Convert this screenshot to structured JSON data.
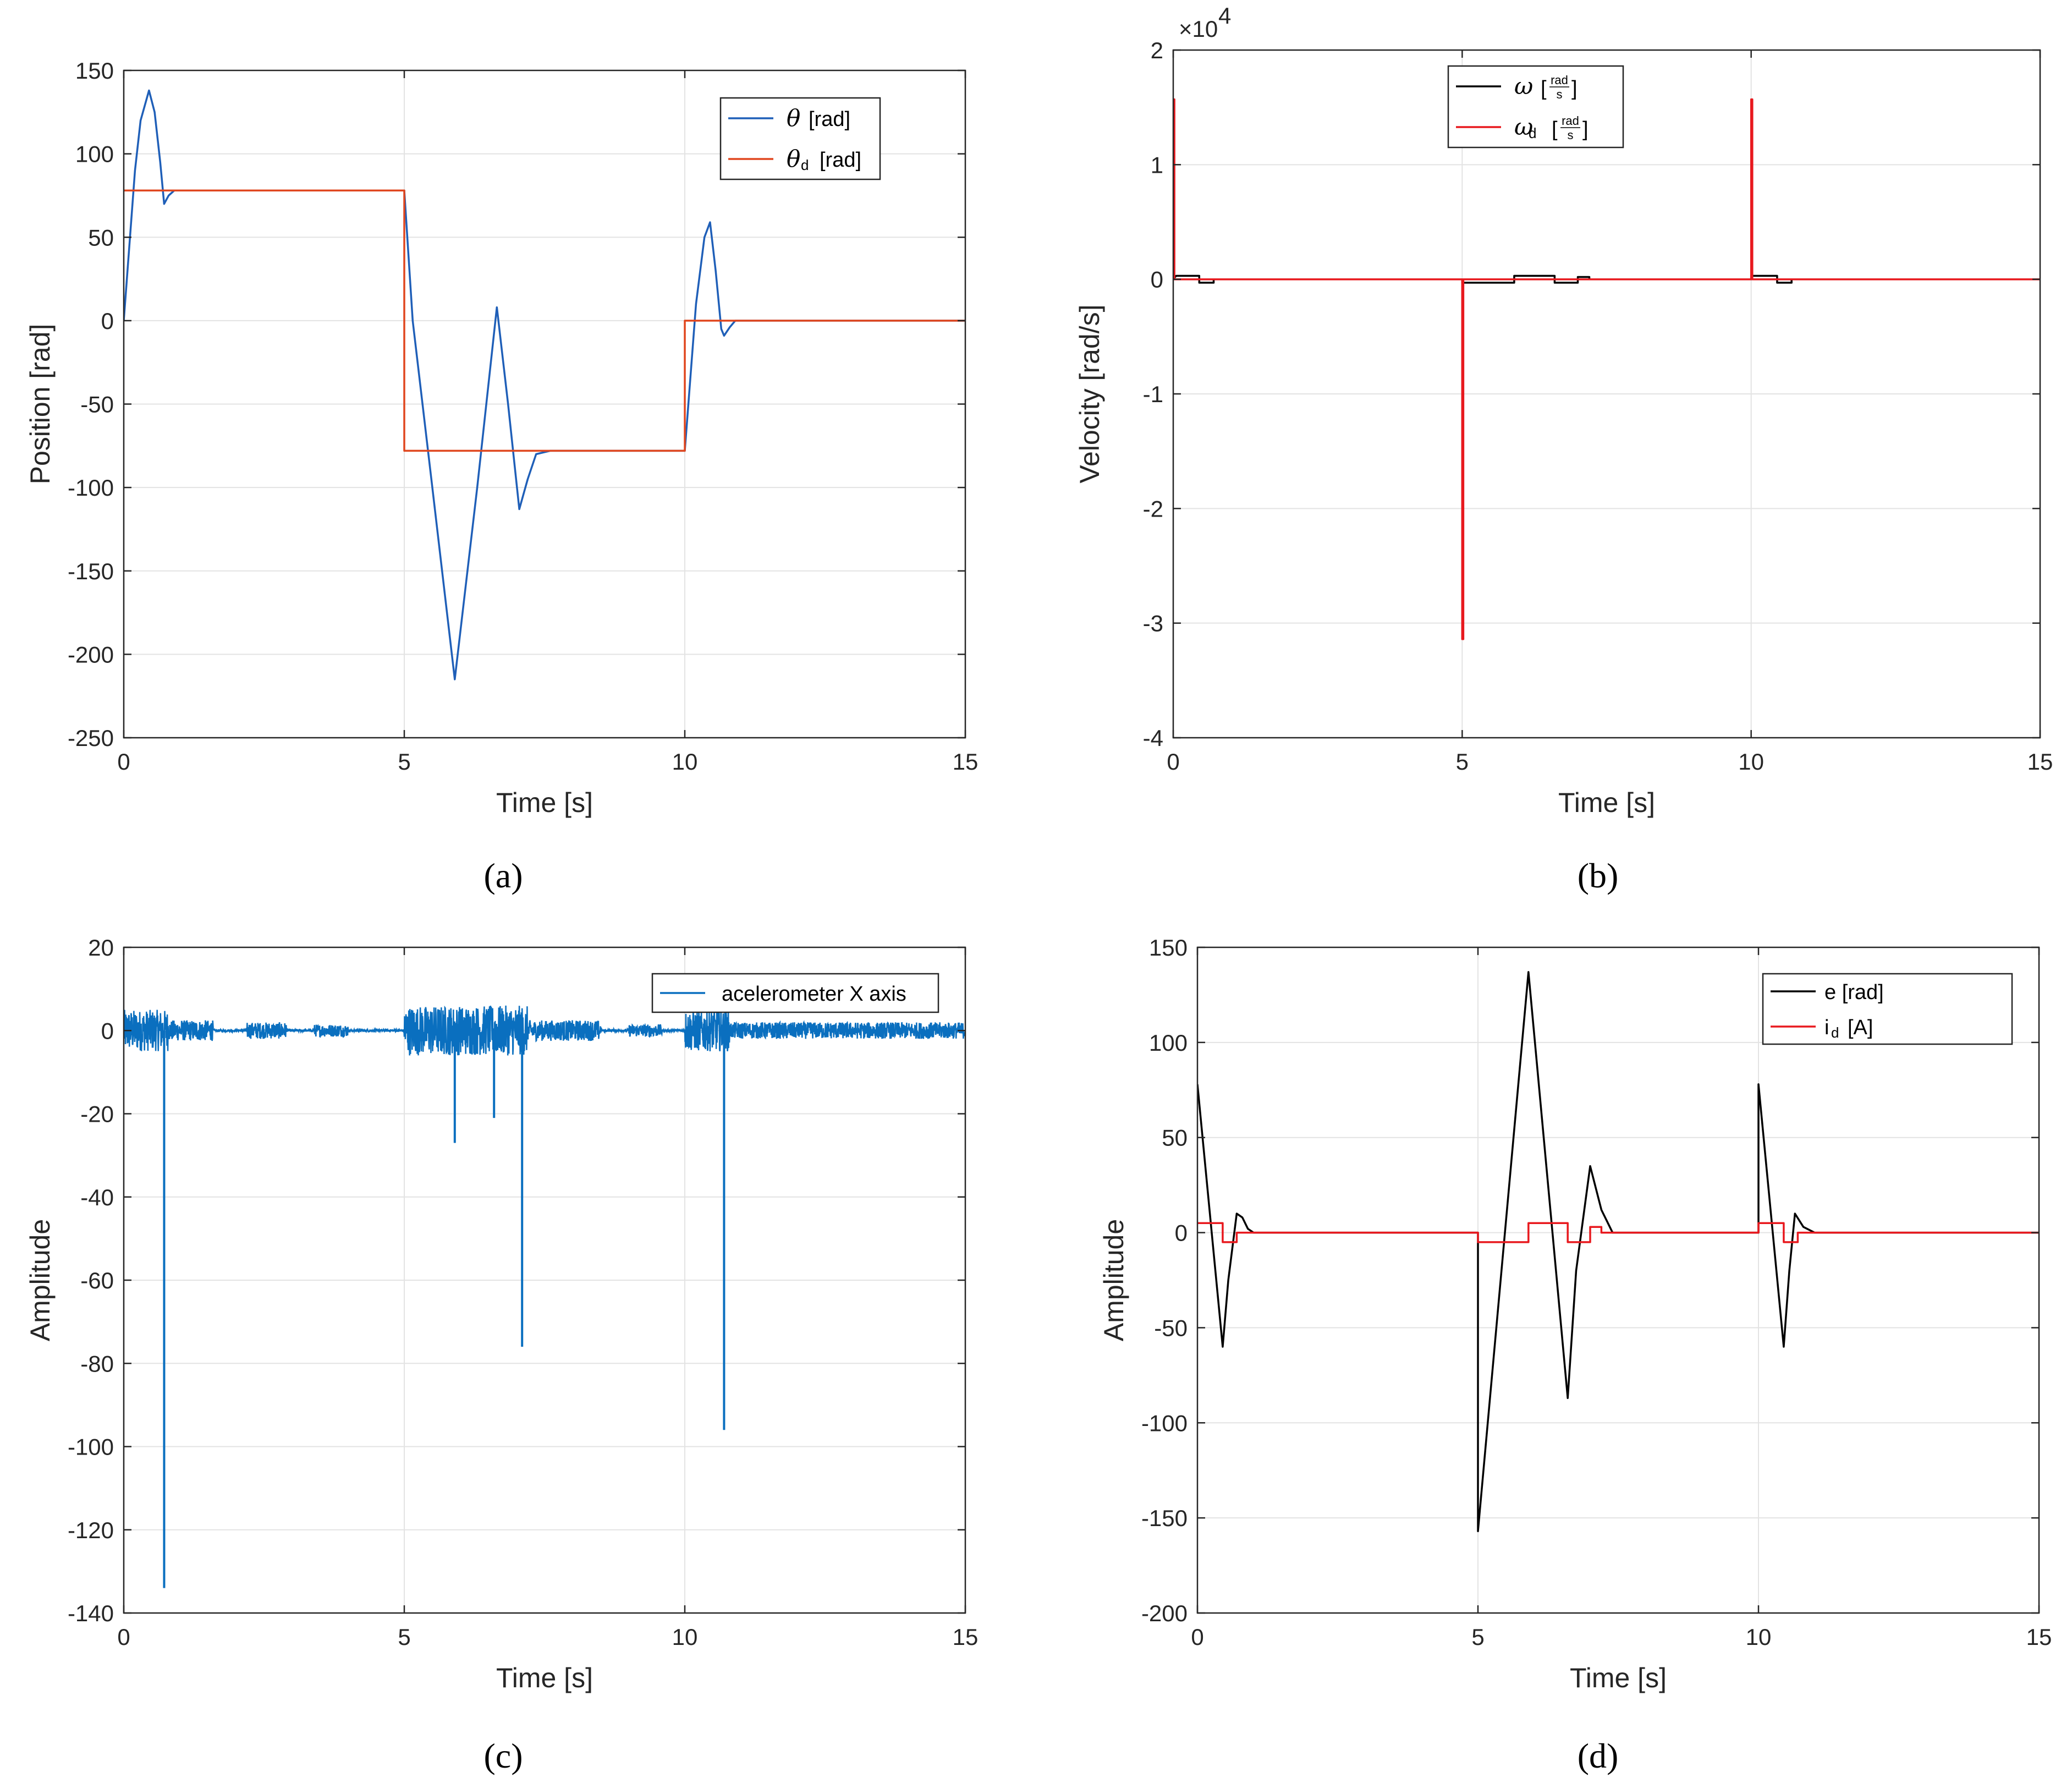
{
  "figure": {
    "captions": [
      "(a)",
      "(b)",
      "(c)",
      "(d)"
    ]
  },
  "chart_data": [
    {
      "id": "a",
      "type": "line",
      "xlabel": "Time [s]",
      "ylabel": "Position [rad]",
      "xlim": [
        0,
        15
      ],
      "ylim": [
        -250,
        150
      ],
      "xticks": [
        0,
        5,
        10,
        15
      ],
      "yticks": [
        150,
        100,
        50,
        0,
        -50,
        -100,
        -150,
        -200,
        -250
      ],
      "grid": true,
      "legend_position": "top-right",
      "legend": [
        {
          "symbol": "θ",
          "sub": "",
          "unit": "[rad]"
        },
        {
          "symbol": "θ",
          "sub": "d",
          "unit": "[rad]"
        }
      ],
      "series": [
        {
          "name": "theta",
          "color": "#1f5fb8",
          "mode": "linear",
          "x": [
            0,
            0.1,
            0.2,
            0.3,
            0.45,
            0.55,
            0.65,
            0.72,
            0.8,
            0.9,
            1.0,
            1.1,
            5.0,
            5.15,
            5.5,
            5.9,
            6.3,
            6.65,
            6.85,
            7.05,
            7.2,
            7.35,
            7.6,
            10.0,
            10.2,
            10.35,
            10.45,
            10.55,
            10.65,
            10.7,
            10.8,
            10.9,
            11.0,
            15.0
          ],
          "y": [
            0,
            45,
            90,
            120,
            138,
            125,
            95,
            70,
            75,
            78,
            78,
            78,
            78,
            0,
            -100,
            -215,
            -100,
            8,
            -50,
            -113,
            -95,
            -80,
            -78,
            -78,
            10,
            50,
            59,
            30,
            -5,
            -9,
            -4,
            0,
            0,
            0
          ]
        },
        {
          "name": "theta_d",
          "color": "#e0471f",
          "mode": "linear",
          "x": [
            0,
            5,
            5,
            10,
            10,
            15
          ],
          "y": [
            78,
            78,
            -78,
            -78,
            0,
            0
          ]
        }
      ]
    },
    {
      "id": "b",
      "type": "line",
      "xlabel": "Time [s]",
      "ylabel": "Velocity [rad/s]",
      "xlim": [
        0,
        15
      ],
      "ylim": [
        -4,
        2
      ],
      "xticks": [
        0,
        5,
        10,
        15
      ],
      "yticks": [
        2,
        1,
        0,
        -1,
        -2,
        -3,
        -4
      ],
      "exponent_label": "×10",
      "exponent_power": "4",
      "grid": true,
      "legend_position": "top-center",
      "legend": [
        {
          "symbol": "ω",
          "sub": "",
          "unit_num": "rad",
          "unit_den": "s"
        },
        {
          "symbol": "ω",
          "sub": "d",
          "unit_num": "rad",
          "unit_den": "s"
        }
      ],
      "series": [
        {
          "name": "omega",
          "color": "#000000",
          "mode": "linear",
          "x": [
            0,
            0.05,
            0.45,
            0.45,
            0.7,
            0.7,
            5.0,
            5.0,
            5.9,
            5.9,
            6.6,
            6.6,
            7.0,
            7.0,
            7.2,
            7.2,
            10.0,
            10.0,
            10.45,
            10.45,
            10.7,
            10.7,
            15.0
          ],
          "y": [
            0,
            0.03,
            0.03,
            -0.03,
            -0.03,
            0,
            0,
            -0.03,
            -0.03,
            0.03,
            0.03,
            -0.03,
            -0.03,
            0.02,
            0.02,
            0,
            0,
            0.03,
            0.03,
            -0.03,
            -0.03,
            0,
            0
          ]
        },
        {
          "name": "omega_d",
          "color": "#e8191e",
          "mode": "linear",
          "x": [
            0,
            0.02,
            0.02,
            5.0,
            5.0,
            5.02,
            5.02,
            10.0,
            10.0,
            10.02,
            10.02,
            15.0
          ],
          "y": [
            1.57,
            1.57,
            0,
            0,
            -3.14,
            -3.14,
            0,
            0,
            1.57,
            1.57,
            0,
            0
          ]
        }
      ]
    },
    {
      "id": "c",
      "type": "line",
      "xlabel": "Time [s]",
      "ylabel": "Amplitude",
      "xlim": [
        0,
        15
      ],
      "ylim": [
        -140,
        20
      ],
      "xticks": [
        0,
        5,
        10,
        15
      ],
      "yticks": [
        20,
        0,
        -20,
        -40,
        -60,
        -80,
        -100,
        -120,
        -140
      ],
      "grid": true,
      "legend_position": "top-right",
      "legend": [
        {
          "symbol": "",
          "sub": "",
          "unit": "acelerometer X axis"
        }
      ],
      "series": [
        {
          "name": "accel_x",
          "color": "#0a6fbf",
          "mode": "noise",
          "noise_bursts": [
            {
              "t0": 0.0,
              "t1": 0.8,
              "amp": 5
            },
            {
              "t0": 0.8,
              "t1": 1.6,
              "amp": 2.5
            },
            {
              "t0": 2.2,
              "t1": 2.9,
              "amp": 2
            },
            {
              "t0": 3.4,
              "t1": 4.0,
              "amp": 1.5
            },
            {
              "t0": 5.0,
              "t1": 7.2,
              "amp": 6
            },
            {
              "t0": 7.2,
              "t1": 8.5,
              "amp": 2.5
            },
            {
              "t0": 9.0,
              "t1": 9.6,
              "amp": 1.5
            },
            {
              "t0": 10.0,
              "t1": 10.8,
              "amp": 5
            },
            {
              "t0": 10.8,
              "t1": 15.0,
              "amp": 2
            }
          ],
          "spikes": [
            {
              "t": 0.72,
              "v": -134
            },
            {
              "t": 5.9,
              "v": -27
            },
            {
              "t": 6.6,
              "v": -21
            },
            {
              "t": 7.1,
              "v": -76
            },
            {
              "t": 10.7,
              "v": -96
            }
          ]
        }
      ]
    },
    {
      "id": "d",
      "type": "line",
      "xlabel": "Time [s]",
      "ylabel": "Amplitude",
      "xlim": [
        0,
        15
      ],
      "ylim": [
        -200,
        150
      ],
      "xticks": [
        0,
        5,
        10,
        15
      ],
      "yticks": [
        150,
        100,
        50,
        0,
        -50,
        -100,
        -150,
        -200
      ],
      "grid": true,
      "legend_position": "top-right",
      "legend": [
        {
          "symbol": "",
          "sub": "",
          "unit": "e [rad]"
        },
        {
          "symbol": "",
          "sub": "",
          "unit": "i_d [A]"
        }
      ],
      "legend_text": [
        "e [rad]",
        "i",
        "d",
        "[A]"
      ],
      "series": [
        {
          "name": "e",
          "color": "#000000",
          "mode": "linear",
          "x": [
            0,
            0.45,
            0.55,
            0.7,
            0.8,
            0.9,
            1.0,
            1.1,
            5.0,
            5.0,
            5.9,
            6.6,
            6.75,
            7.0,
            7.2,
            7.4,
            10.0,
            10.0,
            10.45,
            10.55,
            10.65,
            10.8,
            11.0,
            15.0
          ],
          "y": [
            78,
            -60,
            -25,
            10,
            8,
            2,
            0,
            0,
            0,
            -157,
            137,
            -87,
            -20,
            35,
            12,
            0,
            0,
            78,
            -60,
            -20,
            10,
            3,
            0,
            0
          ]
        },
        {
          "name": "i_d",
          "color": "#e8191e",
          "mode": "linear",
          "x": [
            0,
            0.45,
            0.45,
            0.7,
            0.7,
            5.0,
            5.0,
            5.9,
            5.9,
            6.6,
            6.6,
            7.0,
            7.0,
            7.2,
            7.2,
            10.0,
            10.0,
            10.45,
            10.45,
            10.7,
            10.7,
            15.0
          ],
          "y": [
            5,
            5,
            -5,
            -5,
            0,
            0,
            -5,
            -5,
            5,
            5,
            -5,
            -5,
            3,
            3,
            0,
            0,
            5,
            5,
            -5,
            -5,
            0,
            0
          ]
        }
      ]
    }
  ]
}
